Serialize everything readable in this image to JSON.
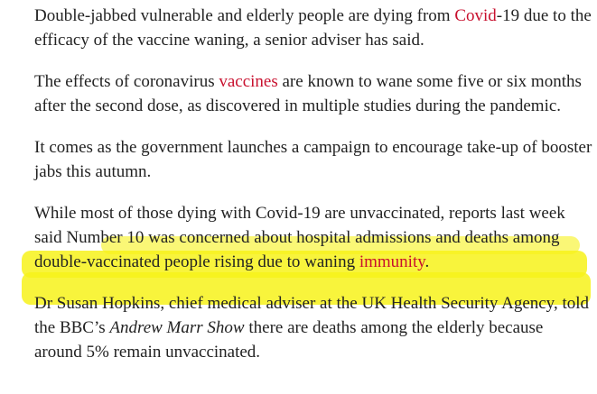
{
  "article": {
    "paragraphs": [
      {
        "parts": [
          "Double-jabbed vulnerable and elderly people are dying from ",
          "Covid",
          "-19 due to the efficacy of the vaccine waning, a senior adviser has said."
        ]
      },
      {
        "parts": [
          "The effects of coronavirus ",
          "vaccines",
          " are known to wane some five or six months after the second dose, as discovered in multiple studies during the pandemic."
        ]
      },
      {
        "parts": [
          "It comes as the government launches a campaign to encourage take-up of booster jabs this autumn."
        ]
      },
      {
        "parts": [
          "While most of those dying with Covid-19 are unvaccinated, reports last week said Number 10 was concerned about hospital admissions and deaths among double-vaccinated people rising due to waning ",
          "immunity",
          "."
        ]
      },
      {
        "parts": [
          "Dr Susan Hopkins, chief medical adviser at the UK Health Security Agency, told the BBC’s ",
          "Andrew Marr Show",
          " there are deaths among the elderly because around 5% remain unvaccinated."
        ]
      }
    ]
  }
}
